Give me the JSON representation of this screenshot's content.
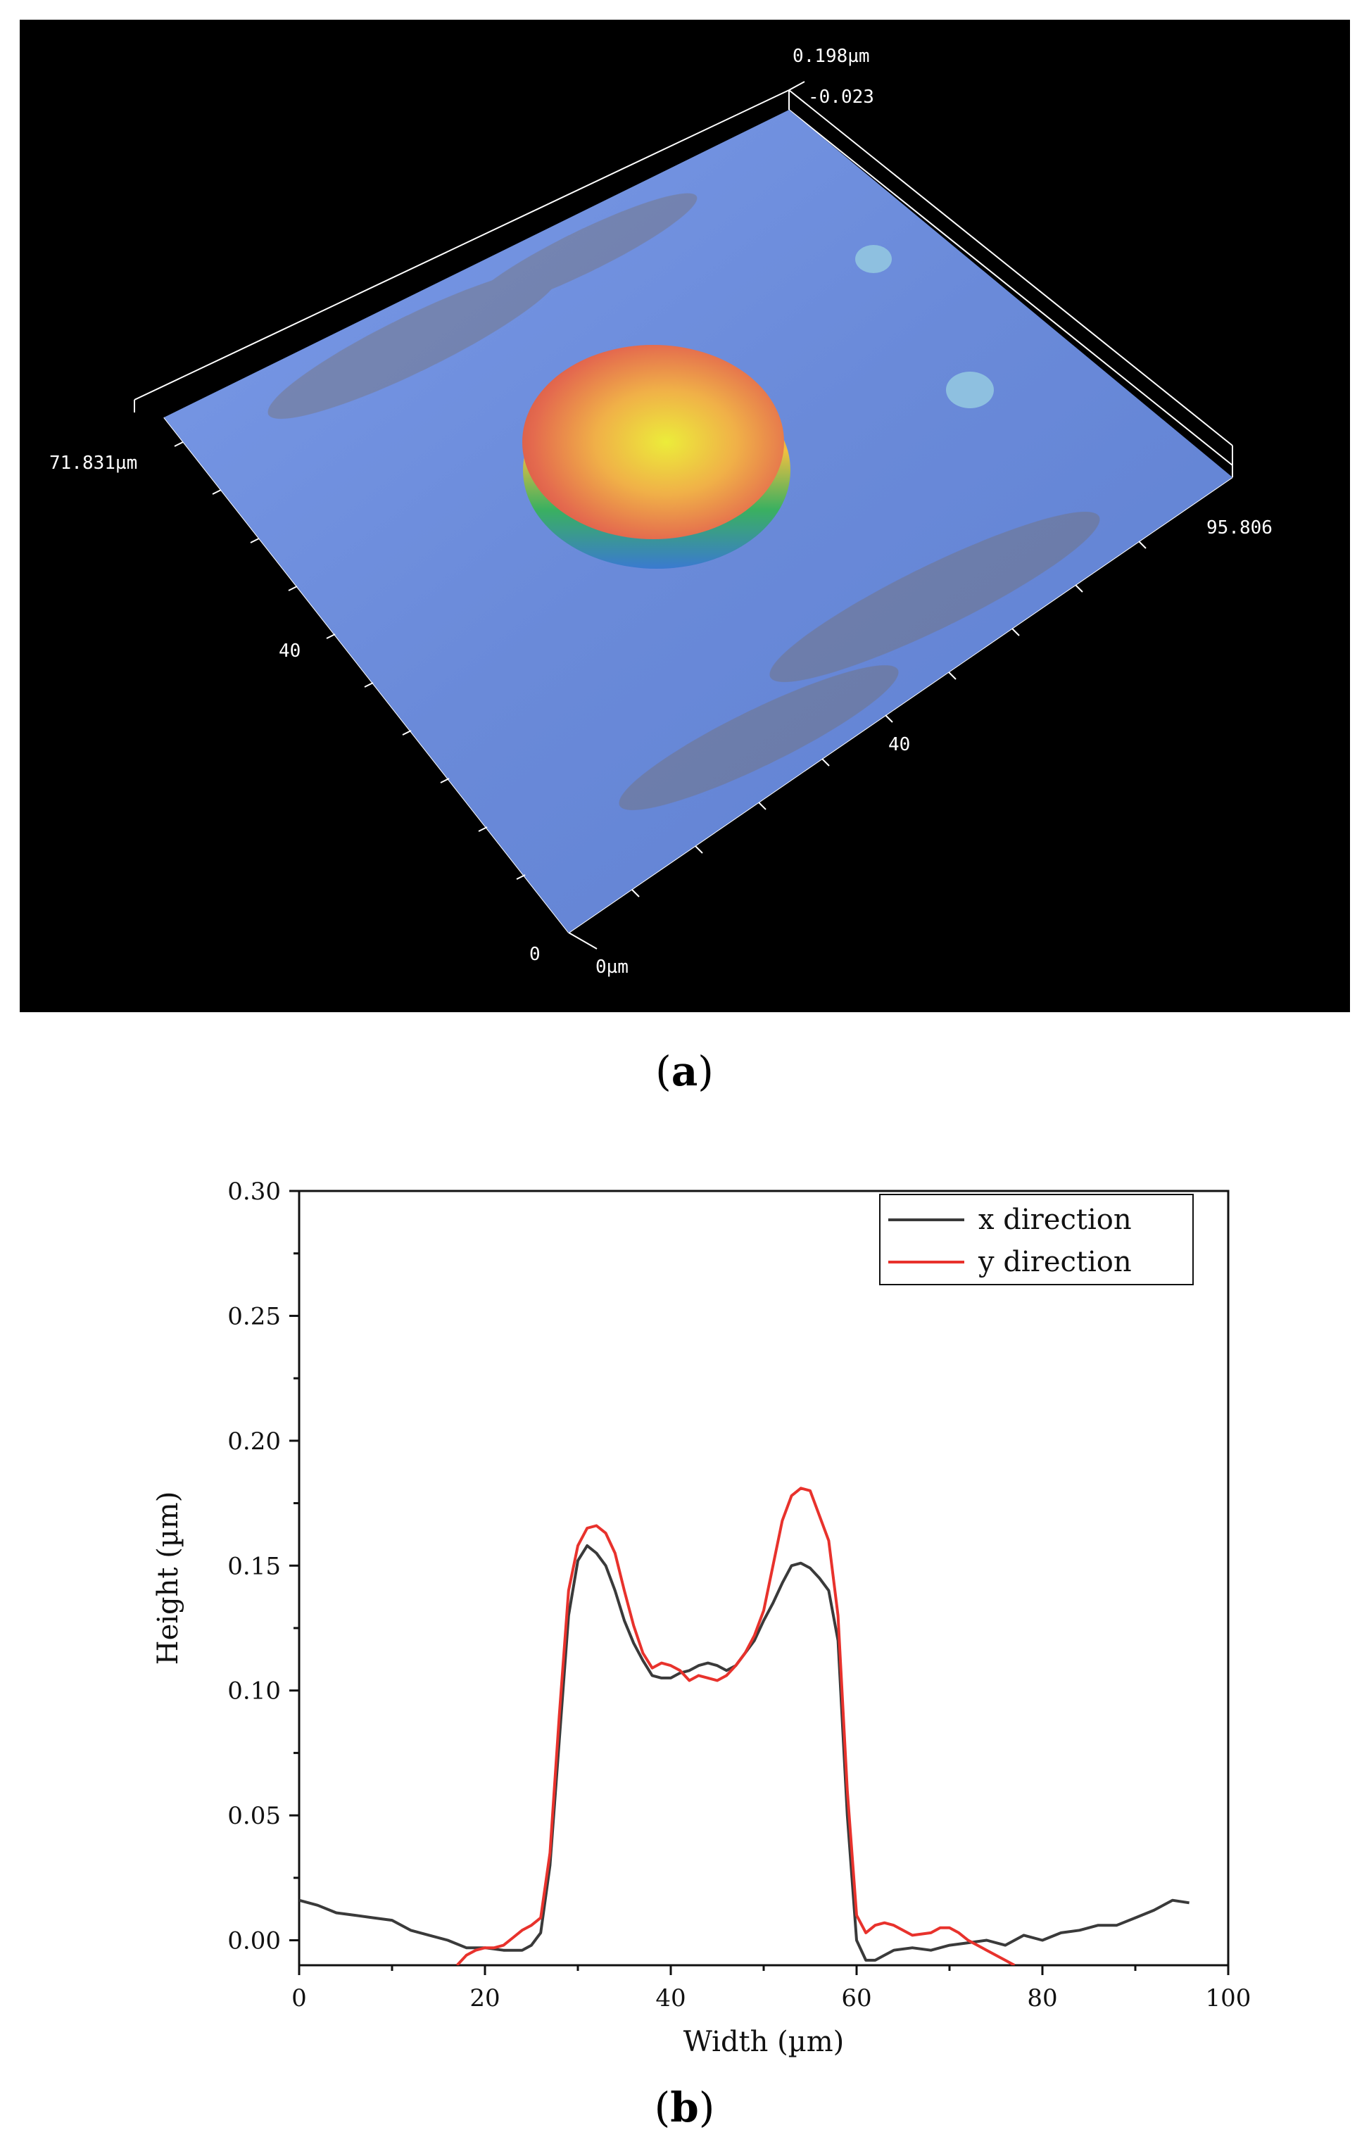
{
  "panel_a": {
    "caption_letter": "a",
    "labels": {
      "z_max": "0.198µm",
      "z_min": "-0.023",
      "y_extent": "71.831µm",
      "x_extent": "95.806",
      "y_tick_40": "40",
      "y_tick_0": "0",
      "x_tick_40": "40",
      "origin": "0µm"
    },
    "colors": {
      "background": "#000000",
      "substrate": "#6d8fe0",
      "dot_center": "#e8e840",
      "dot_edge": "#e0604a"
    }
  },
  "panel_b": {
    "caption_letter": "b"
  },
  "chart_data": {
    "type": "line",
    "title": "",
    "xlabel": "Width (µm)",
    "ylabel": "Height (µm)",
    "xlim": [
      0,
      100
    ],
    "ylim": [
      -0.01,
      0.3
    ],
    "xticks": [
      0,
      20,
      40,
      60,
      80,
      100
    ],
    "yticks": [
      0.0,
      0.05,
      0.1,
      0.15,
      0.2,
      0.25,
      0.3
    ],
    "xtick_labels": [
      "0",
      "20",
      "40",
      "60",
      "80",
      "100"
    ],
    "ytick_labels": [
      "0.00",
      "0.05",
      "0.10",
      "0.15",
      "0.20",
      "0.25",
      "0.30"
    ],
    "legend": {
      "position": "top-right",
      "entries": [
        "x direction",
        "y direction"
      ]
    },
    "series": [
      {
        "name": "x direction",
        "color": "#3a3a3a",
        "x": [
          0,
          2,
          4,
          6,
          8,
          10,
          12,
          14,
          16,
          18,
          20,
          22,
          24,
          25,
          26,
          27,
          28,
          29,
          30,
          31,
          32,
          33,
          34,
          35,
          36,
          37,
          38,
          39,
          40,
          41,
          42,
          43,
          44,
          45,
          46,
          47,
          48,
          49,
          50,
          51,
          52,
          53,
          54,
          55,
          56,
          57,
          58,
          59,
          60,
          61,
          62,
          63,
          64,
          66,
          68,
          70,
          72,
          74,
          76,
          78,
          80,
          82,
          84,
          86,
          88,
          90,
          92,
          94,
          95.8
        ],
        "y": [
          0.016,
          0.014,
          0.011,
          0.01,
          0.009,
          0.008,
          0.004,
          0.002,
          0.0,
          -0.003,
          -0.003,
          -0.004,
          -0.004,
          -0.002,
          0.003,
          0.03,
          0.08,
          0.13,
          0.152,
          0.158,
          0.155,
          0.15,
          0.14,
          0.128,
          0.119,
          0.112,
          0.106,
          0.105,
          0.105,
          0.107,
          0.108,
          0.11,
          0.111,
          0.11,
          0.108,
          0.11,
          0.115,
          0.12,
          0.128,
          0.135,
          0.143,
          0.15,
          0.151,
          0.149,
          0.145,
          0.14,
          0.12,
          0.05,
          0.0,
          -0.008,
          -0.008,
          -0.006,
          -0.004,
          -0.003,
          -0.004,
          -0.002,
          -0.001,
          0.0,
          -0.002,
          0.002,
          0.0,
          0.003,
          0.004,
          0.006,
          0.006,
          0.009,
          0.012,
          0.016,
          0.015
        ]
      },
      {
        "name": "y direction",
        "color": "#e8322c",
        "x": [
          17,
          18,
          19,
          20,
          21,
          22,
          23,
          24,
          25,
          26,
          27,
          28,
          29,
          30,
          31,
          32,
          33,
          34,
          35,
          36,
          37,
          38,
          39,
          40,
          41,
          42,
          43,
          44,
          45,
          46,
          47,
          48,
          49,
          50,
          51,
          52,
          53,
          54,
          55,
          56,
          57,
          58,
          59,
          60,
          61,
          62,
          63,
          64,
          66,
          68,
          69,
          70,
          71,
          72,
          74,
          76,
          77
        ],
        "y": [
          -0.01,
          -0.006,
          -0.004,
          -0.003,
          -0.003,
          -0.002,
          0.001,
          0.004,
          0.006,
          0.009,
          0.035,
          0.09,
          0.14,
          0.158,
          0.165,
          0.166,
          0.163,
          0.155,
          0.14,
          0.126,
          0.115,
          0.109,
          0.111,
          0.11,
          0.108,
          0.104,
          0.106,
          0.105,
          0.104,
          0.106,
          0.11,
          0.115,
          0.122,
          0.132,
          0.15,
          0.168,
          0.178,
          0.181,
          0.18,
          0.17,
          0.16,
          0.13,
          0.06,
          0.01,
          0.003,
          0.006,
          0.007,
          0.006,
          0.002,
          0.003,
          0.005,
          0.005,
          0.003,
          0.0,
          -0.004,
          -0.008,
          -0.01
        ]
      }
    ]
  }
}
